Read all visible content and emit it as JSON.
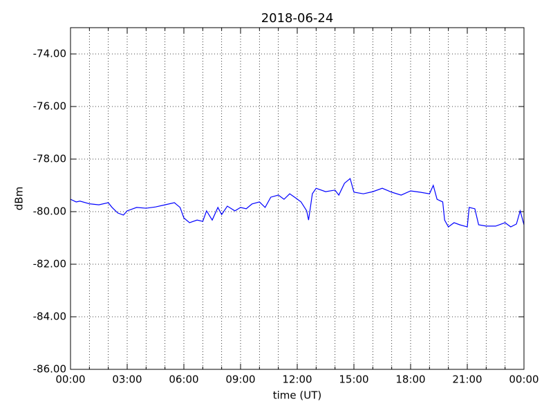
{
  "chart_data": {
    "type": "line",
    "title": "2018-06-24",
    "xlabel": "time (UT)",
    "ylabel": "dBm",
    "x": [
      0,
      0.3,
      0.5,
      1.0,
      1.5,
      2.0,
      2.2,
      2.5,
      2.8,
      3.0,
      3.5,
      4.0,
      4.5,
      5.0,
      5.5,
      5.8,
      6.0,
      6.3,
      6.7,
      7.0,
      7.2,
      7.5,
      7.8,
      8.0,
      8.3,
      8.7,
      9.0,
      9.3,
      9.6,
      10.0,
      10.3,
      10.6,
      11.0,
      11.3,
      11.6,
      11.9,
      12.2,
      12.5,
      12.6,
      12.8,
      13.0,
      13.5,
      14.0,
      14.2,
      14.5,
      14.8,
      15.0,
      15.5,
      16.0,
      16.5,
      17.0,
      17.5,
      18.0,
      18.5,
      19.0,
      19.2,
      19.4,
      19.7,
      19.8,
      20.0,
      20.3,
      20.6,
      21.0,
      21.1,
      21.4,
      21.6,
      22.0,
      22.5,
      23.0,
      23.3,
      23.6,
      23.8,
      24.0
    ],
    "series": [
      {
        "color": "#0000ff",
        "values": [
          -79.53,
          -79.63,
          -79.6,
          -79.7,
          -79.74,
          -79.66,
          -79.84,
          -80.05,
          -80.13,
          -79.97,
          -79.84,
          -79.87,
          -79.82,
          -79.74,
          -79.66,
          -79.84,
          -80.24,
          -80.42,
          -80.32,
          -80.37,
          -79.97,
          -80.32,
          -79.84,
          -80.11,
          -79.79,
          -79.97,
          -79.84,
          -79.89,
          -79.71,
          -79.63,
          -79.84,
          -79.45,
          -79.37,
          -79.53,
          -79.32,
          -79.47,
          -79.63,
          -79.97,
          -80.32,
          -79.32,
          -79.11,
          -79.24,
          -79.18,
          -79.37,
          -78.92,
          -78.74,
          -79.26,
          -79.32,
          -79.24,
          -79.11,
          -79.26,
          -79.37,
          -79.21,
          -79.26,
          -79.32,
          -79.0,
          -79.53,
          -79.63,
          -80.32,
          -80.58,
          -80.42,
          -80.5,
          -80.58,
          -79.84,
          -79.89,
          -80.5,
          -80.55,
          -80.55,
          -80.42,
          -80.58,
          -80.47,
          -79.97,
          -80.5
        ]
      }
    ],
    "xlim": [
      0,
      24
    ],
    "xticks": [
      {
        "value": 0,
        "label": "00:00"
      },
      {
        "value": 3,
        "label": "03:00"
      },
      {
        "value": 6,
        "label": "06:00"
      },
      {
        "value": 9,
        "label": "09:00"
      },
      {
        "value": 12,
        "label": "12:00"
      },
      {
        "value": 15,
        "label": "15:00"
      },
      {
        "value": 18,
        "label": "18:00"
      },
      {
        "value": 21,
        "label": "21:00"
      },
      {
        "value": 24,
        "label": "00:00"
      }
    ],
    "xminorticks": [
      1,
      2,
      4,
      5,
      7,
      8,
      10,
      11,
      13,
      14,
      16,
      17,
      19,
      20,
      22,
      23
    ],
    "ylim": [
      -86,
      -73
    ],
    "yticks": [
      {
        "value": -86,
        "label": "-86.00"
      },
      {
        "value": -84,
        "label": "-84.00"
      },
      {
        "value": -82,
        "label": "-82.00"
      },
      {
        "value": -80,
        "label": "-80.00"
      },
      {
        "value": -78,
        "label": "-78.00"
      },
      {
        "value": -76,
        "label": "-76.00"
      },
      {
        "value": -74,
        "label": "-74.00"
      }
    ],
    "grid": true
  }
}
